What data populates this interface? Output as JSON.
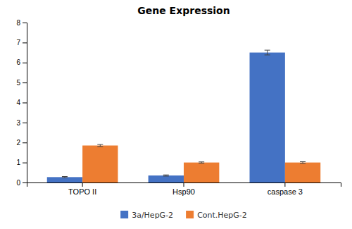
{
  "chart_data": {
    "type": "bar",
    "title": "Gene Expression",
    "categories": [
      "TOPO II",
      "Hsp90",
      "caspase 3"
    ],
    "series": [
      {
        "name": "3a/HepG-2",
        "color": "#4472C4",
        "values": [
          0.27,
          0.35,
          6.5
        ],
        "errors": [
          0.03,
          0.03,
          0.12
        ]
      },
      {
        "name": "Cont.HepG-2",
        "color": "#ED7D31",
        "values": [
          1.85,
          1.0,
          1.0
        ],
        "errors": [
          0.05,
          0.03,
          0.04
        ]
      }
    ],
    "ylim": [
      0,
      8
    ],
    "yticks": [
      0,
      1,
      2,
      3,
      4,
      5,
      6,
      7,
      8
    ],
    "grid": false,
    "legend": "bottom"
  }
}
